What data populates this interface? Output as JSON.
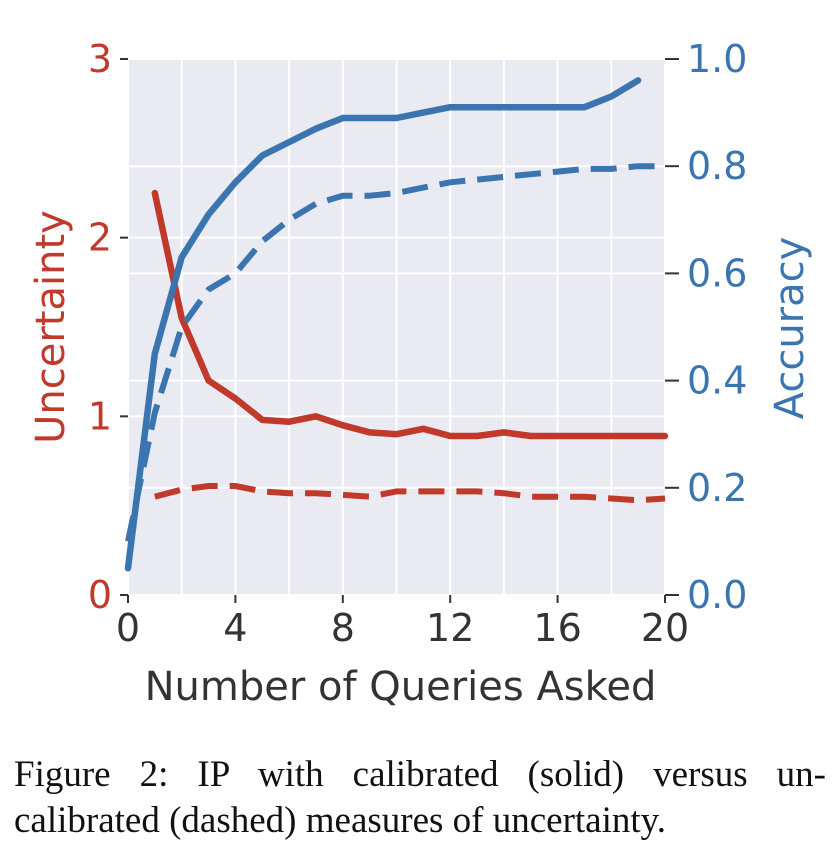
{
  "chart_data": {
    "type": "line",
    "x_axis": {
      "label": "Number of Queries Asked",
      "range": [
        0,
        20
      ],
      "ticks": [
        "0",
        "4",
        "8",
        "12",
        "16",
        "20"
      ],
      "tick_values": [
        0,
        4,
        8,
        12,
        16,
        20
      ],
      "minor_grid_values": [
        2,
        6,
        10,
        14,
        18
      ]
    },
    "y_left": {
      "label": "Uncertainty",
      "range": [
        0,
        3
      ],
      "ticks": [
        "0",
        "1",
        "2",
        "3"
      ],
      "tick_values": [
        0,
        1,
        2,
        3
      ],
      "color": "#c0392b"
    },
    "y_right": {
      "label": "Accuracy",
      "range": [
        0,
        1
      ],
      "ticks": [
        "0.0",
        "0.2",
        "0.4",
        "0.6",
        "0.8",
        "1.0"
      ],
      "tick_values": [
        0,
        0.2,
        0.4,
        0.6,
        0.8,
        1.0
      ],
      "color": "#3a75b0"
    },
    "grid": true,
    "background": "#eaeaf2",
    "series": [
      {
        "axis": "left",
        "style": "solid",
        "color": "#c0392b",
        "x": [
          1,
          2,
          3,
          4,
          5,
          6,
          7,
          8,
          9,
          10,
          11,
          12,
          13,
          14,
          15,
          16,
          17,
          18,
          19,
          20
        ],
        "y": [
          2.25,
          1.55,
          1.2,
          1.1,
          0.98,
          0.97,
          1.0,
          0.95,
          0.91,
          0.9,
          0.93,
          0.89,
          0.89,
          0.91,
          0.89,
          0.89,
          0.89,
          0.89,
          0.89,
          0.89
        ]
      },
      {
        "axis": "left",
        "style": "dashed",
        "color": "#c0392b",
        "x": [
          1,
          2,
          3,
          4,
          5,
          6,
          7,
          8,
          9,
          10,
          11,
          12,
          13,
          14,
          15,
          16,
          17,
          18,
          19,
          20
        ],
        "y": [
          0.55,
          0.59,
          0.61,
          0.61,
          0.58,
          0.57,
          0.57,
          0.56,
          0.55,
          0.58,
          0.58,
          0.58,
          0.58,
          0.57,
          0.55,
          0.55,
          0.55,
          0.54,
          0.53,
          0.54
        ]
      },
      {
        "axis": "right",
        "style": "solid",
        "color": "#3a75b0",
        "x": [
          0,
          1,
          2,
          3,
          4,
          5,
          6,
          7,
          8,
          9,
          10,
          11,
          12,
          13,
          14,
          15,
          16,
          17,
          18,
          19
        ],
        "y": [
          0.05,
          0.45,
          0.63,
          0.71,
          0.77,
          0.82,
          0.845,
          0.87,
          0.89,
          0.89,
          0.89,
          0.9,
          0.91,
          0.91,
          0.91,
          0.91,
          0.91,
          0.91,
          0.93,
          0.96
        ]
      },
      {
        "axis": "right",
        "style": "dashed",
        "color": "#3a75b0",
        "x": [
          0,
          1,
          2,
          3,
          4,
          5,
          6,
          7,
          8,
          9,
          10,
          11,
          12,
          13,
          14,
          15,
          16,
          17,
          18,
          19,
          20
        ],
        "y": [
          0.1,
          0.34,
          0.5,
          0.57,
          0.6,
          0.66,
          0.7,
          0.73,
          0.745,
          0.745,
          0.75,
          0.76,
          0.77,
          0.775,
          0.78,
          0.785,
          0.79,
          0.795,
          0.795,
          0.8,
          0.8
        ]
      }
    ]
  },
  "caption": "Figure 2: IP with calibrated (solid) versus un-calibrated (dashed) measures of uncertainty."
}
